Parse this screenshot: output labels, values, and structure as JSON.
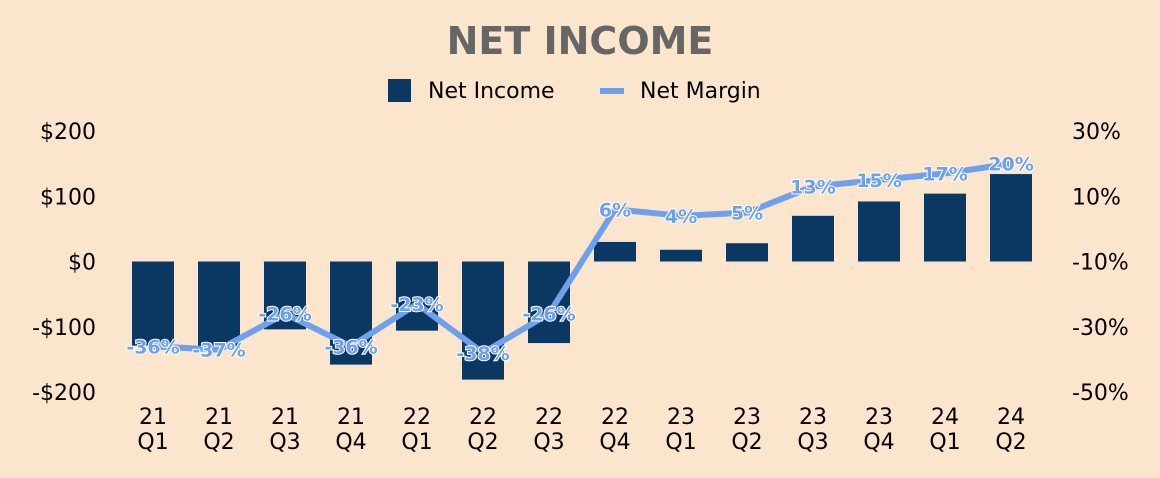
{
  "colors": {
    "background": "#fbe5cd",
    "bar": "#0b3763",
    "line": "#6fa0eb",
    "title": "#666666",
    "text": "#000000"
  },
  "chart_data": {
    "type": "bar",
    "title": "NET INCOME",
    "legend": {
      "placement": "top-center",
      "entries": [
        "Net Income",
        "Net Margin"
      ]
    },
    "categories": [
      [
        "21",
        "Q1"
      ],
      [
        "21",
        "Q2"
      ],
      [
        "21",
        "Q3"
      ],
      [
        "21",
        "Q4"
      ],
      [
        "22",
        "Q1"
      ],
      [
        "22",
        "Q2"
      ],
      [
        "22",
        "Q3"
      ],
      [
        "22",
        "Q4"
      ],
      [
        "23",
        "Q1"
      ],
      [
        "23",
        "Q2"
      ],
      [
        "23",
        "Q3"
      ],
      [
        "23",
        "Q4"
      ],
      [
        "24",
        "Q1"
      ],
      [
        "24",
        "Q2"
      ]
    ],
    "series": [
      {
        "name": "Net Income",
        "type": "bar",
        "axis": "left",
        "values": [
          -129,
          -133,
          -104,
          -158,
          -106,
          -181,
          -125,
          30,
          18,
          28,
          70,
          92,
          104,
          134
        ]
      },
      {
        "name": "Net Margin",
        "type": "line",
        "axis": "right",
        "values": [
          -36,
          -37,
          -26,
          -36,
          -23,
          -38,
          -26,
          6,
          4,
          5,
          13,
          15,
          17,
          20
        ],
        "labels": [
          "-36%",
          "-37%",
          "-26%",
          "-36%",
          "-23%",
          "-38%",
          "-26%",
          "6%",
          "4%",
          "5%",
          "13%",
          "15%",
          "17%",
          "20%"
        ]
      }
    ],
    "y_left": {
      "ylim": [
        -200,
        200
      ],
      "ticks": [
        200,
        100,
        0,
        -100,
        -200
      ],
      "tick_labels": [
        "$200",
        "$100",
        "$0",
        "-$100",
        "-$200"
      ]
    },
    "y_right": {
      "ylim": [
        -50,
        30
      ],
      "ticks": [
        30,
        10,
        -10,
        -30,
        -50
      ],
      "tick_labels": [
        "30%",
        "10%",
        "-10%",
        "-30%",
        "-50%"
      ]
    },
    "grid": false
  }
}
